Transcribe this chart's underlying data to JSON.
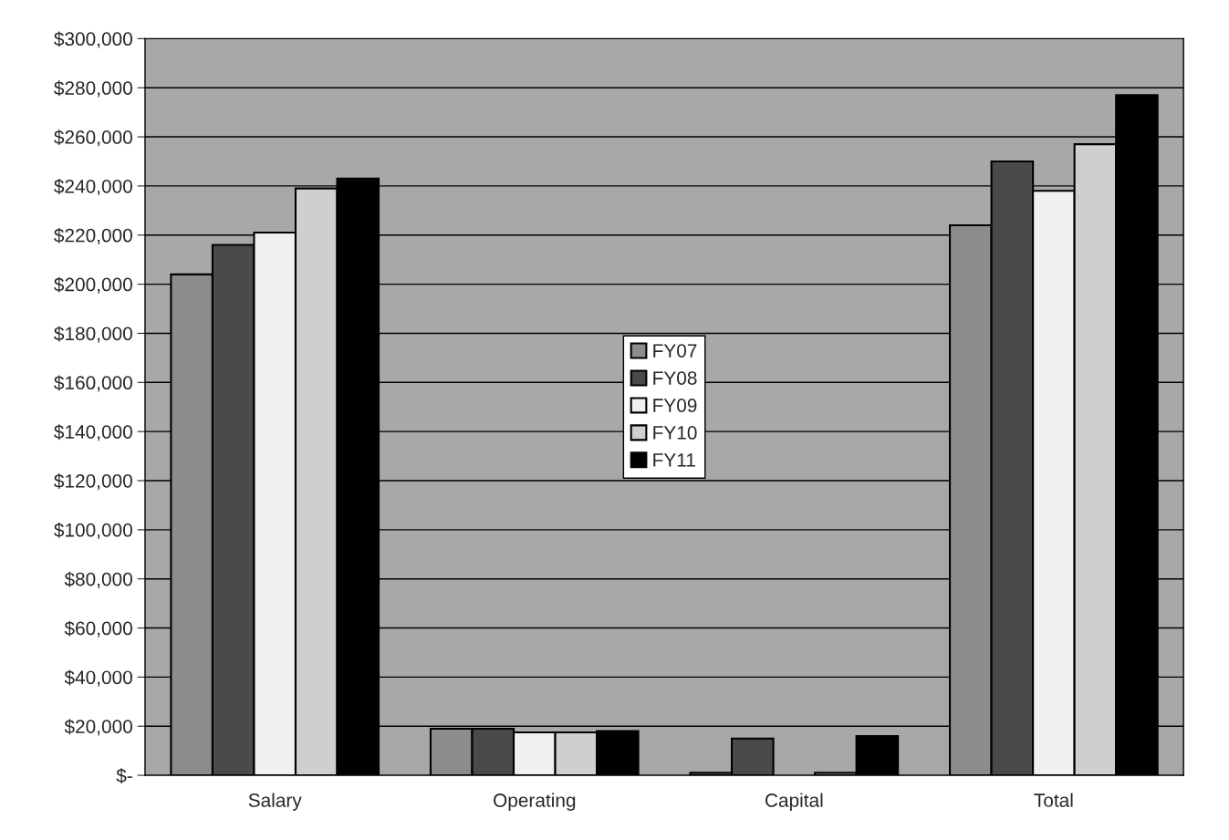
{
  "chart_data": {
    "type": "bar",
    "categories": [
      "Salary",
      "Operating",
      "Capital",
      "Total"
    ],
    "series": [
      {
        "name": "FY07",
        "color": "#8c8c8c",
        "values": [
          204000,
          19000,
          1000,
          224000
        ]
      },
      {
        "name": "FY08",
        "color": "#4a4a4a",
        "values": [
          216000,
          19000,
          15000,
          250000
        ]
      },
      {
        "name": "FY09",
        "color": "#f0f0f0",
        "values": [
          221000,
          17500,
          0,
          238000
        ]
      },
      {
        "name": "FY10",
        "color": "#cfcfcf",
        "values": [
          239000,
          17500,
          1000,
          257000
        ]
      },
      {
        "name": "FY11",
        "color": "#000000",
        "values": [
          243000,
          18000,
          16000,
          277000
        ]
      }
    ],
    "ylim": [
      0,
      300000
    ],
    "yticks": [
      {
        "value": 0,
        "label": "$-"
      },
      {
        "value": 20000,
        "label": "$20,000"
      },
      {
        "value": 40000,
        "label": "$40,000"
      },
      {
        "value": 60000,
        "label": "$60,000"
      },
      {
        "value": 80000,
        "label": "$80,000"
      },
      {
        "value": 100000,
        "label": "$100,000"
      },
      {
        "value": 120000,
        "label": "$120,000"
      },
      {
        "value": 140000,
        "label": "$140,000"
      },
      {
        "value": 160000,
        "label": "$160,000"
      },
      {
        "value": 180000,
        "label": "$180,000"
      },
      {
        "value": 200000,
        "label": "$200,000"
      },
      {
        "value": 220000,
        "label": "$220,000"
      },
      {
        "value": 240000,
        "label": "$240,000"
      },
      {
        "value": 260000,
        "label": "$260,000"
      },
      {
        "value": 280000,
        "label": "$280,000"
      },
      {
        "value": 300000,
        "label": "$300,000"
      }
    ],
    "grid": "y",
    "legend": "center"
  }
}
